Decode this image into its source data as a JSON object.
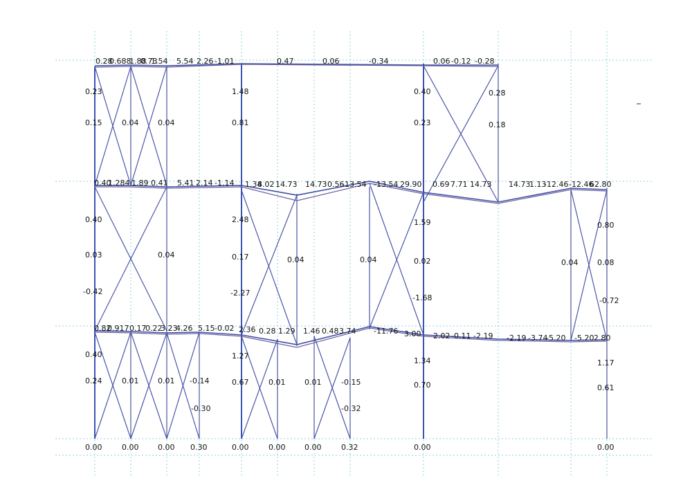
{
  "diagram": {
    "kind": "structural frame analysis",
    "colors": {
      "grid": "#8fd0d8",
      "members": "#3f4fa6",
      "deflected": "#6b5f9e",
      "text": "#111111"
    },
    "labels": {
      "top_beam": [
        "0.28",
        "0.688",
        "1.88",
        "0.73",
        "1.54",
        "5.54",
        "2.26",
        "-1.01",
        "0.47",
        "0.06",
        "-0.34",
        "0.06",
        "-0.12",
        "-0.28"
      ],
      "middle_beam": [
        "0.40",
        "1.284",
        "1.89",
        "0.41",
        "5.41",
        "2.14",
        "-1.14",
        "1.34",
        "8.02",
        "14.73",
        "14.73",
        "0.56",
        "-13.54",
        "-13.54",
        "29.90",
        "0.69",
        "7.71",
        "14.73",
        "14.73",
        "1.13",
        "-12.46",
        "-12.46",
        "62.80"
      ],
      "lower_beam": [
        "0.82",
        "0.917",
        "0.17",
        "0.22",
        "3.23",
        "4.26",
        "5.15",
        "-0.02",
        "2.36",
        "0.28",
        "1.29",
        "1.46",
        "0.48",
        "3.74",
        "-11.76",
        "3.00",
        "2.02",
        "-0.11",
        "-2.19",
        "-2.19",
        "-3.74",
        "-5.20",
        "-5.20",
        "2.80"
      ],
      "column_top": [
        "0.23",
        "0.15",
        "0.04",
        "0.04",
        "1.48",
        "0.81",
        "0.40",
        "0.23",
        "0.28",
        "0.18"
      ],
      "column_mid": [
        "0.40",
        "0.03",
        "-0.42",
        "0.04",
        "2.48",
        "0.17",
        "-2.27",
        "0.04",
        "0.04",
        "1.59",
        "0.02",
        "-1.68",
        "0.04",
        "0.80",
        "0.08",
        "-0.72"
      ],
      "column_low": [
        "0.40",
        "0.24",
        "0.01",
        "0.01",
        "-0.14",
        "-0.30",
        "1.27",
        "0.67",
        "0.01",
        "0.01",
        "-0.15",
        "-0.32",
        "1.34",
        "0.70",
        "1.17",
        "0.61"
      ],
      "supports": [
        "0.00",
        "0.00",
        "0.00",
        "0.30",
        "0.00",
        "0.00",
        "0.00",
        "0.32",
        "0.00",
        "0.00"
      ]
    }
  }
}
